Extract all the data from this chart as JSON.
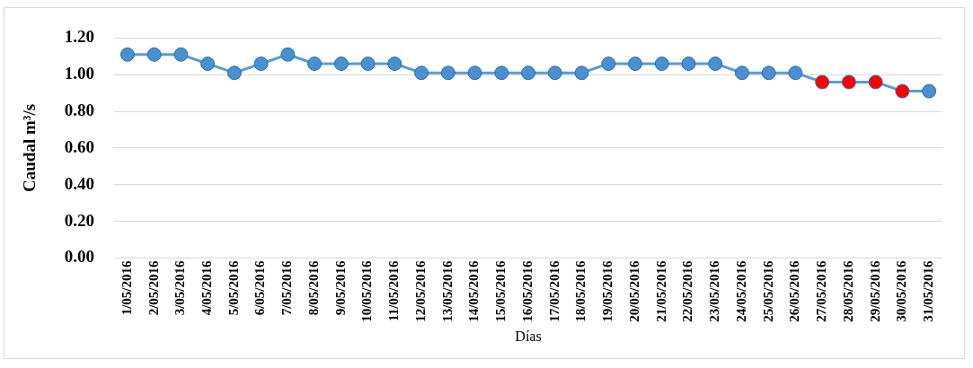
{
  "chart_data": {
    "type": "line",
    "xlabel": "Días",
    "ylabel": "Caudal m³/s",
    "categories": [
      "1/05/2016",
      "2/05/2016",
      "3/05/2016",
      "4/05/2016",
      "5/05/2016",
      "6/05/2016",
      "7/05/2016",
      "8/05/2016",
      "9/05/2016",
      "10/05/2016",
      "11/05/2016",
      "12/05/2016",
      "13/05/2016",
      "14/05/2016",
      "15/05/2016",
      "16/05/2016",
      "17/05/2016",
      "18/05/2016",
      "19/05/2016",
      "20/05/2016",
      "21/05/2016",
      "22/05/2016",
      "23/05/2016",
      "24/05/2016",
      "25/05/2016",
      "26/05/2016",
      "27/05/2016",
      "28/05/2016",
      "29/05/2016",
      "30/05/2016",
      "31/05/2016"
    ],
    "series": [
      {
        "color": "#5b9bd5",
        "values": [
          1.11,
          1.11,
          1.11,
          1.06,
          1.01,
          1.06,
          1.11,
          1.06,
          1.06,
          1.06,
          1.06,
          1.01,
          1.01,
          1.01,
          1.01,
          1.01,
          1.01,
          1.01,
          1.06,
          1.06,
          1.06,
          1.06,
          1.06,
          1.01,
          1.01,
          1.01,
          0.96,
          0.96,
          0.96,
          0.91,
          0.91
        ],
        "colors": [
          "#4a90d0",
          "#4a90d0",
          "#4a90d0",
          "#4a90d0",
          "#4a90d0",
          "#4a90d0",
          "#4a90d0",
          "#4a90d0",
          "#4a90d0",
          "#4a90d0",
          "#4a90d0",
          "#4a90d0",
          "#4a90d0",
          "#4a90d0",
          "#4a90d0",
          "#4a90d0",
          "#4a90d0",
          "#4a90d0",
          "#4a90d0",
          "#4a90d0",
          "#4a90d0",
          "#4a90d0",
          "#4a90d0",
          "#4a90d0",
          "#4a90d0",
          "#4a90d0",
          "#ff0000",
          "#ff0000",
          "#ff0000",
          "#ff0000",
          "#4a90d0"
        ]
      }
    ],
    "ylim": [
      0,
      1.2
    ],
    "yticks": [
      {
        "value": 0,
        "label": "0.00"
      },
      {
        "value": 0.2,
        "label": "0.20"
      },
      {
        "value": 0.4,
        "label": "0.40"
      },
      {
        "value": 0.6,
        "label": "0.60"
      },
      {
        "value": 0.8,
        "label": "0.80"
      },
      {
        "value": 1,
        "label": "1.00"
      },
      {
        "value": 1.2,
        "label": "1.20"
      }
    ],
    "grid": "y",
    "marker": "circle",
    "line_style": "solid",
    "legend": false
  }
}
